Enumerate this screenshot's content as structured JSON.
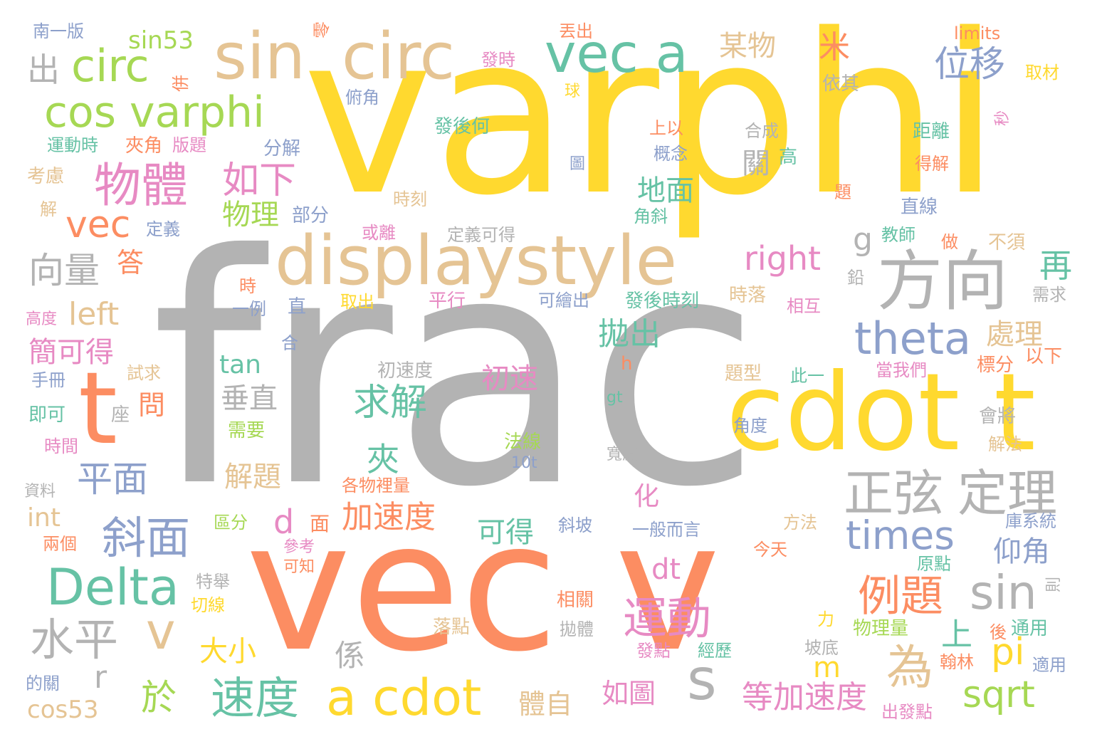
{
  "palette": [
    "#b3b3b3",
    "#fc8d62",
    "#ffd92f",
    "#66c2a5",
    "#e5c494",
    "#8da0cb",
    "#e78ac3",
    "#a6d854"
  ],
  "words": [
    {
      "text": "frac",
      "color": "#b3b3b3"
    },
    {
      "text": "varphi",
      "color": "#ffd92f"
    },
    {
      "text": "vec v",
      "color": "#fc8d62"
    },
    {
      "text": "cdot t",
      "color": "#ffd92f"
    },
    {
      "text": "displaystyle",
      "color": "#e5c494"
    },
    {
      "text": "sin",
      "color": "#e5c494"
    },
    {
      "text": "circ",
      "color": "#e5c494"
    },
    {
      "text": "vec a",
      "color": "#66c2a5"
    },
    {
      "text": "t",
      "color": "#fc8d62"
    },
    {
      "text": "方向",
      "color": "#b3b3b3"
    },
    {
      "text": "Delta",
      "color": "#66c2a5"
    },
    {
      "text": "正弦",
      "color": "#b3b3b3"
    },
    {
      "text": "定理",
      "color": "#b3b3b3"
    },
    {
      "text": "cos varphi",
      "color": "#a6d854"
    },
    {
      "text": "a cdot",
      "color": "#ffd92f"
    },
    {
      "text": "物體",
      "color": "#e78ac3"
    },
    {
      "text": "circ",
      "color": "#a6d854"
    },
    {
      "text": "theta",
      "color": "#8da0cb"
    },
    {
      "text": "運動",
      "color": "#e78ac3"
    },
    {
      "text": "times",
      "color": "#8da0cb"
    },
    {
      "text": "sin",
      "color": "#b3b3b3"
    },
    {
      "text": "例題",
      "color": "#fc8d62"
    },
    {
      "text": "水平",
      "color": "#b3b3b3"
    },
    {
      "text": "速度",
      "color": "#66c2a5"
    },
    {
      "text": "斜面",
      "color": "#8da0cb"
    },
    {
      "text": "s",
      "color": "#b3b3b3"
    },
    {
      "text": "如下",
      "color": "#e78ac3"
    },
    {
      "text": "位移",
      "color": "#8da0cb"
    },
    {
      "text": "v",
      "color": "#e5c494"
    },
    {
      "text": "vec",
      "color": "#fc8d62"
    },
    {
      "text": "為",
      "color": "#e5c494"
    },
    {
      "text": "求解",
      "color": "#66c2a5"
    },
    {
      "text": "right",
      "color": "#e78ac3"
    },
    {
      "text": "sqrt",
      "color": "#a6d854"
    },
    {
      "text": "向量",
      "color": "#b3b3b3"
    },
    {
      "text": "平面",
      "color": "#8da0cb"
    },
    {
      "text": "left",
      "color": "#e5c494"
    },
    {
      "text": "加速度",
      "color": "#fc8d62"
    },
    {
      "text": "等加速度",
      "color": "#e78ac3"
    },
    {
      "text": "地面",
      "color": "#66c2a5"
    },
    {
      "text": "拋出",
      "color": "#66c2a5"
    },
    {
      "text": "簡可得",
      "color": "#e78ac3"
    },
    {
      "text": "物理",
      "color": "#a6d854"
    },
    {
      "text": "垂直",
      "color": "#b3b3b3"
    },
    {
      "text": "處理",
      "color": "#e5c494"
    },
    {
      "text": "初速",
      "color": "#e78ac3"
    },
    {
      "text": "可得",
      "color": "#66c2a5"
    },
    {
      "text": "仰角",
      "color": "#8da0cb"
    },
    {
      "text": "解題",
      "color": "#e5c494"
    },
    {
      "text": "夾",
      "color": "#66c2a5"
    },
    {
      "text": "於",
      "color": "#a6d854"
    },
    {
      "text": "dt",
      "color": "#e78ac3"
    },
    {
      "text": "大小",
      "color": "#ffd92f"
    },
    {
      "text": "某物",
      "color": "#e5c494"
    },
    {
      "text": "如圖",
      "color": "#e78ac3"
    },
    {
      "text": "體自",
      "color": "#e5c494"
    },
    {
      "text": "cos53",
      "color": "#e5c494"
    },
    {
      "text": "上",
      "color": "#66c2a5"
    },
    {
      "text": "pi",
      "color": "#ffd92f"
    },
    {
      "text": "再",
      "color": "#66c2a5"
    },
    {
      "text": "出",
      "color": "#b3b3b3"
    },
    {
      "text": "米",
      "color": "#fc8d62"
    },
    {
      "text": "sin53",
      "color": "#a6d854"
    },
    {
      "text": "關",
      "color": "#b3b3b3"
    },
    {
      "text": "g",
      "color": "#b3b3b3"
    },
    {
      "text": "tan",
      "color": "#66c2a5"
    },
    {
      "text": "答",
      "color": "#fc8d62"
    },
    {
      "text": "問",
      "color": "#fc8d62"
    },
    {
      "text": "係",
      "color": "#b3b3b3"
    },
    {
      "text": "r",
      "color": "#b3b3b3"
    },
    {
      "text": "d",
      "color": "#e78ac3"
    },
    {
      "text": "m",
      "color": "#ffd92f"
    },
    {
      "text": "化",
      "color": "#e78ac3"
    },
    {
      "text": "int",
      "color": "#e5c494"
    },
    {
      "text": "面",
      "color": "#fc8d62"
    },
    {
      "text": "南一版",
      "color": "#8da0cb"
    },
    {
      "text": "零",
      "color": "#fc8d62"
    },
    {
      "text": "丟出",
      "color": "#fc8d62"
    },
    {
      "text": "發時",
      "color": "#e78ac3"
    },
    {
      "text": "limits",
      "color": "#fc8d62"
    },
    {
      "text": "取材",
      "color": "#ffd92f"
    },
    {
      "text": "俯角",
      "color": "#8da0cb"
    },
    {
      "text": "球",
      "color": "#ffd92f"
    },
    {
      "text": "依其",
      "color": "#b3b3b3"
    },
    {
      "text": "併",
      "color": "#fc8d62"
    },
    {
      "text": "運動時",
      "color": "#66c2a5"
    },
    {
      "text": "夾角",
      "color": "#fc8d62"
    },
    {
      "text": "版題",
      "color": "#e78ac3"
    },
    {
      "text": "分解",
      "color": "#8da0cb"
    },
    {
      "text": "發後何",
      "color": "#66c2a5"
    },
    {
      "text": "上以",
      "color": "#fc8d62"
    },
    {
      "text": "合成",
      "color": "#b3b3b3"
    },
    {
      "text": "距離",
      "color": "#66c2a5"
    },
    {
      "text": "秒",
      "color": "#e78ac3"
    },
    {
      "text": "考慮",
      "color": "#e5c494"
    },
    {
      "text": "概念",
      "color": "#8da0cb"
    },
    {
      "text": "圖",
      "color": "#8da0cb"
    },
    {
      "text": "高",
      "color": "#66c2a5"
    },
    {
      "text": "得解",
      "color": "#fc8d62"
    },
    {
      "text": "解",
      "color": "#e5c494"
    },
    {
      "text": "時刻",
      "color": "#e5c494"
    },
    {
      "text": "題",
      "color": "#fc8d62"
    },
    {
      "text": "直線",
      "color": "#8da0cb"
    },
    {
      "text": "定義",
      "color": "#8da0cb"
    },
    {
      "text": "部分",
      "color": "#8da0cb"
    },
    {
      "text": "角斜",
      "color": "#66c2a5"
    },
    {
      "text": "教師",
      "color": "#66c2a5"
    },
    {
      "text": "或離",
      "color": "#e78ac3"
    },
    {
      "text": "定義可得",
      "color": "#b3b3b3"
    },
    {
      "text": "做",
      "color": "#fc8d62"
    },
    {
      "text": "不須",
      "color": "#e5c494"
    },
    {
      "text": "鉛",
      "color": "#b3b3b3"
    },
    {
      "text": "時",
      "color": "#fc8d62"
    },
    {
      "text": "需求",
      "color": "#b3b3b3"
    },
    {
      "text": "高度",
      "color": "#e78ac3"
    },
    {
      "text": "一例",
      "color": "#8da0cb"
    },
    {
      "text": "直",
      "color": "#8da0cb"
    },
    {
      "text": "取出",
      "color": "#ffd92f"
    },
    {
      "text": "平行",
      "color": "#e78ac3"
    },
    {
      "text": "可繪出",
      "color": "#8da0cb"
    },
    {
      "text": "發後時刻",
      "color": "#66c2a5"
    },
    {
      "text": "時落",
      "color": "#e5c494"
    },
    {
      "text": "相互",
      "color": "#e78ac3"
    },
    {
      "text": "合",
      "color": "#8da0cb"
    },
    {
      "text": "試求",
      "color": "#e5c494"
    },
    {
      "text": "初速度",
      "color": "#b3b3b3"
    },
    {
      "text": "h",
      "color": "#fc8d62"
    },
    {
      "text": "題型",
      "color": "#e5c494"
    },
    {
      "text": "此一",
      "color": "#66c2a5"
    },
    {
      "text": "當我們",
      "color": "#e78ac3"
    },
    {
      "text": "標分",
      "color": "#fc8d62"
    },
    {
      "text": "以下",
      "color": "#fc8d62"
    },
    {
      "text": "手冊",
      "color": "#8da0cb"
    },
    {
      "text": "gt",
      "color": "#66c2a5"
    },
    {
      "text": "即可",
      "color": "#66c2a5"
    },
    {
      "text": "座",
      "color": "#b3b3b3"
    },
    {
      "text": "需要",
      "color": "#a6d854"
    },
    {
      "text": "角度",
      "color": "#8da0cb"
    },
    {
      "text": "會將",
      "color": "#b3b3b3"
    },
    {
      "text": "時間",
      "color": "#e78ac3"
    },
    {
      "text": "法線",
      "color": "#a6d854"
    },
    {
      "text": "寬度",
      "color": "#b3b3b3"
    },
    {
      "text": "解法",
      "color": "#e5c494"
    },
    {
      "text": "10t",
      "color": "#8da0cb"
    },
    {
      "text": "資料",
      "color": "#b3b3b3"
    },
    {
      "text": "各物裡量",
      "color": "#fc8d62"
    },
    {
      "text": "區分",
      "color": "#a6d854"
    },
    {
      "text": "斜坡",
      "color": "#8da0cb"
    },
    {
      "text": "一般而言",
      "color": "#8da0cb"
    },
    {
      "text": "方法",
      "color": "#e5c494"
    },
    {
      "text": "庫系統",
      "color": "#8da0cb"
    },
    {
      "text": "兩個",
      "color": "#fc8d62"
    },
    {
      "text": "參考",
      "color": "#e78ac3"
    },
    {
      "text": "今天",
      "color": "#fc8d62"
    },
    {
      "text": "原點",
      "color": "#66c2a5"
    },
    {
      "text": "可知",
      "color": "#fc8d62"
    },
    {
      "text": "特舉",
      "color": "#b3b3b3"
    },
    {
      "text": "則",
      "color": "#b3b3b3"
    },
    {
      "text": "相關",
      "color": "#fc8d62"
    },
    {
      "text": "切線",
      "color": "#ffd92f"
    },
    {
      "text": "力",
      "color": "#ffd92f"
    },
    {
      "text": "物理量",
      "color": "#a6d854"
    },
    {
      "text": "後",
      "color": "#fc8d62"
    },
    {
      "text": "通用",
      "color": "#66c2a5"
    },
    {
      "text": "落點",
      "color": "#e5c494"
    },
    {
      "text": "拋體",
      "color": "#b3b3b3"
    },
    {
      "text": "發點",
      "color": "#e78ac3"
    },
    {
      "text": "經歷",
      "color": "#66c2a5"
    },
    {
      "text": "坡底",
      "color": "#b3b3b3"
    },
    {
      "text": "翰林",
      "color": "#fc8d62"
    },
    {
      "text": "適用",
      "color": "#8da0cb"
    },
    {
      "text": "的關",
      "color": "#8da0cb"
    },
    {
      "text": "出發點",
      "color": "#e78ac3"
    }
  ]
}
